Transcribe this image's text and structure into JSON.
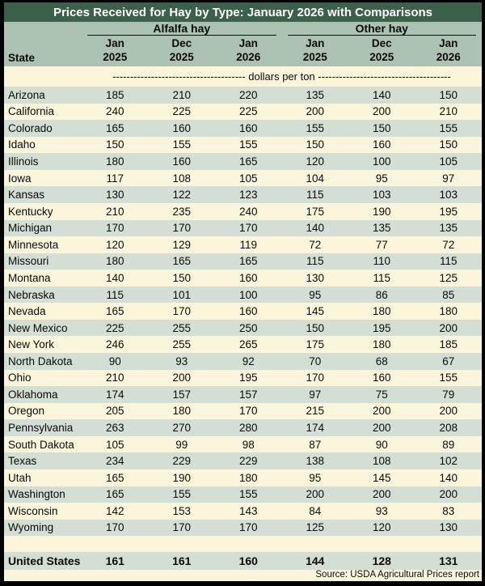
{
  "title": "Prices Received for Hay by Type: January 2026 with Comparisons",
  "header": {
    "state_label": "State",
    "groups": [
      {
        "label": "Alfalfa hay"
      },
      {
        "label": "Other hay"
      }
    ],
    "col_headers": [
      {
        "month": "Jan",
        "year": "2025"
      },
      {
        "month": "Dec",
        "year": "2025"
      },
      {
        "month": "Jan",
        "year": "2026"
      },
      {
        "month": "Jan",
        "year": "2025"
      },
      {
        "month": "Dec",
        "year": "2025"
      },
      {
        "month": "Jan",
        "year": "2026"
      }
    ]
  },
  "unit_row": {
    "dashes_left": "--------------------------------------",
    "label": " dollars per ton ",
    "dashes_right": "--------------------------------------"
  },
  "source": "Source: USDA Agricultural Prices report",
  "colors": {
    "title_bg": "#3C614A",
    "title_fg": "#FFFFFF",
    "header_bg": "#ADC2B2",
    "row_green": "#D3DED4",
    "row_cream": "#FBF5DC",
    "frame": "#000000"
  },
  "chart_data": {
    "type": "table",
    "title": "Prices Received for Hay by Type: January 2026 with Comparisons",
    "unit": "dollars per ton",
    "column_groups": [
      "Alfalfa hay",
      "Other hay"
    ],
    "columns": [
      "State",
      "Alfalfa Jan 2025",
      "Alfalfa Dec 2025",
      "Alfalfa Jan 2026",
      "Other Jan 2025",
      "Other Dec 2025",
      "Other Jan 2026"
    ],
    "rows": [
      {
        "state": "Arizona",
        "values": [
          185,
          210,
          220,
          135,
          140,
          150
        ]
      },
      {
        "state": "California",
        "values": [
          240,
          225,
          225,
          200,
          200,
          210
        ]
      },
      {
        "state": "Colorado",
        "values": [
          165,
          160,
          160,
          155,
          150,
          155
        ]
      },
      {
        "state": "Idaho",
        "values": [
          150,
          155,
          155,
          150,
          160,
          150
        ]
      },
      {
        "state": "Illinois",
        "values": [
          180,
          160,
          165,
          120,
          100,
          105
        ]
      },
      {
        "state": "Iowa",
        "values": [
          117,
          108,
          105,
          104,
          95,
          97
        ]
      },
      {
        "state": "Kansas",
        "values": [
          130,
          122,
          123,
          115,
          103,
          103
        ]
      },
      {
        "state": "Kentucky",
        "values": [
          210,
          235,
          240,
          175,
          190,
          195
        ]
      },
      {
        "state": "Michigan",
        "values": [
          170,
          170,
          170,
          140,
          135,
          135
        ]
      },
      {
        "state": "Minnesota",
        "values": [
          120,
          129,
          119,
          72,
          77,
          72
        ]
      },
      {
        "state": "Missouri",
        "values": [
          180,
          165,
          165,
          115,
          110,
          115
        ]
      },
      {
        "state": "Montana",
        "values": [
          140,
          150,
          160,
          130,
          115,
          125
        ]
      },
      {
        "state": "Nebraska",
        "values": [
          115,
          101,
          100,
          95,
          86,
          85
        ]
      },
      {
        "state": "Nevada",
        "values": [
          165,
          170,
          160,
          145,
          180,
          180
        ]
      },
      {
        "state": "New Mexico",
        "values": [
          225,
          255,
          250,
          150,
          195,
          200
        ]
      },
      {
        "state": "New York",
        "values": [
          246,
          255,
          265,
          175,
          180,
          185
        ]
      },
      {
        "state": "North Dakota",
        "values": [
          90,
          93,
          92,
          70,
          68,
          67
        ]
      },
      {
        "state": "Ohio",
        "values": [
          210,
          200,
          195,
          170,
          160,
          155
        ]
      },
      {
        "state": "Oklahoma",
        "values": [
          174,
          157,
          157,
          97,
          75,
          79
        ]
      },
      {
        "state": "Oregon",
        "values": [
          205,
          180,
          170,
          215,
          200,
          200
        ]
      },
      {
        "state": "Pennsylvania",
        "values": [
          263,
          270,
          280,
          174,
          200,
          208
        ]
      },
      {
        "state": "South Dakota",
        "values": [
          105,
          99,
          98,
          87,
          90,
          89
        ]
      },
      {
        "state": "Texas",
        "values": [
          234,
          229,
          229,
          138,
          108,
          102
        ]
      },
      {
        "state": "Utah",
        "values": [
          165,
          190,
          180,
          95,
          145,
          140
        ]
      },
      {
        "state": "Washington",
        "values": [
          165,
          155,
          155,
          200,
          200,
          200
        ]
      },
      {
        "state": "Wisconsin",
        "values": [
          142,
          153,
          143,
          84,
          93,
          83
        ]
      },
      {
        "state": "Wyoming",
        "values": [
          170,
          170,
          170,
          125,
          120,
          130
        ]
      }
    ],
    "total": {
      "state": "United States",
      "values": [
        161,
        161,
        160,
        144,
        128,
        131
      ]
    },
    "source": "Source: USDA Agricultural Prices report"
  }
}
